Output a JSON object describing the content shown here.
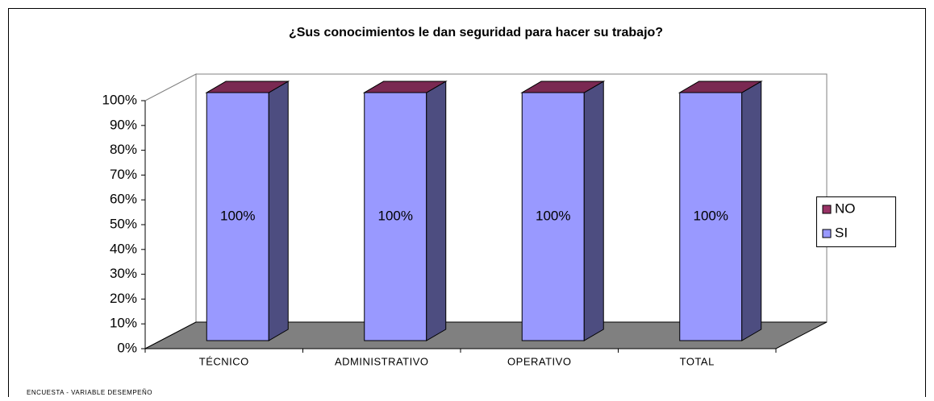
{
  "chart_data": {
    "type": "bar3d_stacked",
    "title": "¿Sus conocimientos le dan seguridad para hacer su trabajo?",
    "categories": [
      "TÉCNICO",
      "ADMINISTRATIVO",
      "OPERATIVO",
      "TOTAL"
    ],
    "series": [
      {
        "name": "SI",
        "color": "#9999ff",
        "values": [
          100,
          100,
          100,
          100
        ],
        "value_labels": [
          "100%",
          "100%",
          "100%",
          "100%"
        ]
      },
      {
        "name": "NO",
        "color": "#993366",
        "values": [
          0,
          0,
          0,
          0
        ]
      }
    ],
    "ylim": [
      0,
      100
    ],
    "yticks": [
      {
        "value": 0,
        "label": "0%"
      },
      {
        "value": 10,
        "label": "10%"
      },
      {
        "value": 20,
        "label": "20%"
      },
      {
        "value": 30,
        "label": "30%"
      },
      {
        "value": 40,
        "label": "40%"
      },
      {
        "value": 50,
        "label": "50%"
      },
      {
        "value": 60,
        "label": "60%"
      },
      {
        "value": 70,
        "label": "70%"
      },
      {
        "value": 80,
        "label": "80%"
      },
      {
        "value": 90,
        "label": "90%"
      },
      {
        "value": 100,
        "label": "100%"
      }
    ],
    "legend": "right",
    "footnote": "ENCUESTA - VARIABLE DESEMPEÑO"
  }
}
